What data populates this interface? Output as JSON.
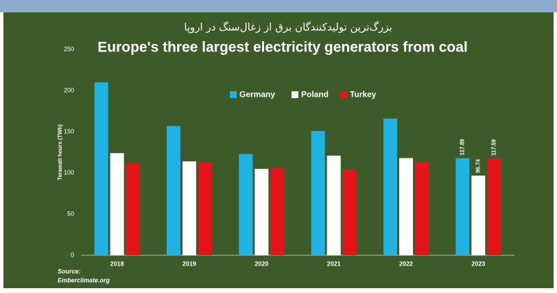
{
  "chart_data": {
    "type": "bar",
    "subtitle": "بزرگ‌ترین تولیدکنندگان برق از زغال‌سنگ در اروپا",
    "title": "Europe's three largest electricity generators from coal",
    "y_label": "Terawatt hours (TWh)",
    "source": [
      "Source:",
      "Emberclimate.org"
    ],
    "categories": [
      "2018",
      "2019",
      "2020",
      "2021",
      "2022",
      "2023"
    ],
    "series": [
      {
        "name": "Germany",
        "color": "#1fb2e3",
        "values": [
          210,
          157,
          123,
          151,
          166,
          117.89
        ],
        "value_labels": [
          null,
          null,
          null,
          null,
          null,
          "117.89"
        ]
      },
      {
        "name": "Poland",
        "color": "#ffffff",
        "values": [
          124,
          114,
          105,
          121,
          118,
          96.74
        ],
        "value_labels": [
          null,
          null,
          null,
          null,
          null,
          "96.74"
        ]
      },
      {
        "name": "Turkey",
        "color": "#e5141b",
        "values": [
          112,
          113,
          106,
          104,
          113,
          117.59
        ],
        "value_labels": [
          null,
          null,
          null,
          null,
          null,
          "117.59"
        ]
      }
    ],
    "ylim": [
      0,
      250
    ],
    "yticks": [
      0,
      50,
      100,
      150,
      200,
      250
    ],
    "grid": false
  }
}
